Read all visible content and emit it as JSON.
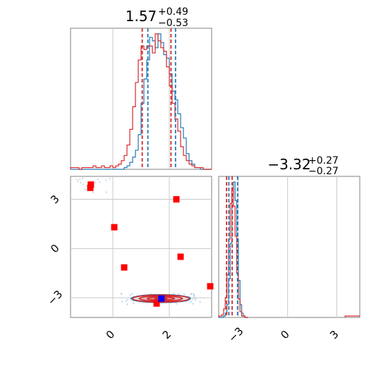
{
  "chart_data": [
    {
      "panel": "marginal-param-1",
      "type": "histogram",
      "title": {
        "value": "1.57",
        "plus": "+0.49",
        "minus": "−0.53"
      },
      "xlim": [
        -1.5,
        3.5
      ],
      "grid": true,
      "series": [
        {
          "name": "",
          "color": "#1f77b4",
          "x": [
            -1.5,
            -1.4,
            -1.3,
            -1.2,
            -1.1,
            -1.0,
            -0.9,
            -0.8,
            -0.7,
            -0.6,
            -0.5,
            -0.4,
            -0.3,
            -0.2,
            -0.1,
            0.0,
            0.1,
            0.2,
            0.3,
            0.4,
            0.5,
            0.6,
            0.7,
            0.8,
            0.9,
            1.0,
            1.1,
            1.2,
            1.3,
            1.4,
            1.5,
            1.6,
            1.7,
            1.8,
            1.9,
            2.0,
            2.1,
            2.2,
            2.3,
            2.4,
            2.5,
            2.6,
            2.7,
            2.8,
            2.9,
            3.0,
            3.1,
            3.2,
            3.3,
            3.4,
            3.5
          ],
          "counts": [
            0,
            0,
            0,
            0,
            0,
            0,
            0,
            0,
            0,
            0,
            0,
            0,
            0,
            0,
            0,
            0,
            0,
            0,
            0,
            1,
            2,
            4,
            7,
            11,
            20,
            38,
            52,
            63,
            76,
            74,
            70,
            78,
            73,
            66,
            64,
            55,
            45,
            40,
            32,
            24,
            18,
            9,
            5,
            3,
            1,
            1,
            0,
            0,
            0,
            0
          ]
        },
        {
          "name": "",
          "color": "#d62728",
          "x": [
            -1.5,
            -1.4,
            -1.3,
            -1.2,
            -1.1,
            -1.0,
            -0.9,
            -0.8,
            -0.7,
            -0.6,
            -0.5,
            -0.4,
            -0.3,
            -0.2,
            -0.1,
            0.0,
            0.1,
            0.2,
            0.3,
            0.4,
            0.5,
            0.6,
            0.7,
            0.8,
            0.9,
            1.0,
            1.1,
            1.2,
            1.3,
            1.4,
            1.5,
            1.6,
            1.7,
            1.8,
            1.9,
            2.0,
            2.1,
            2.2,
            2.3,
            2.4,
            2.5,
            2.6,
            2.7,
            2.8,
            2.9,
            3.0,
            3.1,
            3.2,
            3.3,
            3.4,
            3.5
          ],
          "counts": [
            1,
            1,
            1,
            0,
            1,
            1,
            1,
            1,
            2,
            1,
            1,
            2,
            1,
            1,
            2,
            1,
            2,
            3,
            5,
            8,
            14,
            23,
            36,
            50,
            63,
            71,
            69,
            71,
            71,
            67,
            78,
            74,
            70,
            68,
            59,
            48,
            38,
            29,
            22,
            13,
            8,
            5,
            3,
            2,
            1,
            1,
            1,
            0,
            0,
            0
          ]
        }
      ],
      "quantile_lines": [
        {
          "color": "#d62728",
          "x": [
            1.04,
            2.06
          ]
        },
        {
          "color": "#1f77b4",
          "x": [
            1.24,
            2.22
          ]
        }
      ]
    },
    {
      "panel": "marginal-param-2",
      "type": "histogram",
      "title": {
        "value": "−3.32",
        "plus": "+0.27",
        "minus": "−0.27"
      },
      "xlim": [
        -4.2,
        4.4
      ],
      "grid": true,
      "series": [
        {
          "name": "",
          "color": "#1f77b4",
          "x": [
            -4.2,
            -4.1,
            -4.0,
            -3.9,
            -3.8,
            -3.7,
            -3.6,
            -3.5,
            -3.4,
            -3.3,
            -3.2,
            -3.1,
            -3.0,
            -2.9,
            -2.8,
            -2.7,
            -2.6,
            -2.5,
            -2.4
          ],
          "counts": [
            0,
            0,
            0,
            1,
            3,
            9,
            27,
            52,
            86,
            95,
            82,
            55,
            26,
            9,
            3,
            1,
            0,
            0
          ]
        },
        {
          "name": "",
          "color": "#d62728",
          "x": [
            -4.2,
            -4.1,
            -4.0,
            -3.9,
            -3.8,
            -3.7,
            -3.6,
            -3.5,
            -3.4,
            -3.3,
            -3.2,
            -3.1,
            -3.0,
            -2.9,
            -2.8,
            -2.7,
            -2.6,
            -2.5,
            -2.4
          ],
          "counts": [
            1,
            1,
            2,
            6,
            14,
            30,
            55,
            80,
            91,
            78,
            57,
            31,
            13,
            4,
            1,
            1,
            0,
            0
          ]
        }
      ],
      "tail_counts": {
        "color": "#d62728",
        "x_range": [
          3.5,
          4.4
        ],
        "count": 1
      },
      "quantile_lines": [
        {
          "color": "#d62728",
          "x": [
            -3.72,
            -3.38
          ]
        },
        {
          "color": "#1f77b4",
          "x": [
            -3.58,
            -3.05
          ]
        }
      ]
    },
    {
      "panel": "joint-param-1-param-2",
      "type": "scatter",
      "xlim": [
        -1.5,
        3.5
      ],
      "ylim": [
        -4.2,
        4.4
      ],
      "grid": true,
      "x_ticks": [
        "0",
        "2"
      ],
      "y_ticks": [
        "−3",
        "0",
        "3"
      ],
      "contours": [
        {
          "color": "#1f77b4",
          "center": [
            1.7,
            -3.05
          ],
          "levels": [
            [
              1.05,
              0.24
            ],
            [
              0.78,
              0.17
            ],
            [
              0.5,
              0.11
            ],
            [
              0.25,
              0.06
            ]
          ]
        },
        {
          "color": "#d62728",
          "center": [
            1.7,
            -3.05
          ],
          "levels": [
            [
              1.0,
              0.22
            ],
            [
              0.75,
              0.16
            ],
            [
              0.48,
              0.1
            ],
            [
              0.22,
              0.05
            ]
          ]
        }
      ],
      "markers": [
        {
          "color": "#ff0000",
          "shape": "square",
          "points": [
            [
              -0.8,
              3.7
            ],
            [
              -0.78,
              3.9
            ],
            [
              0.05,
              1.3
            ],
            [
              2.25,
              3.0
            ],
            [
              0.4,
              -1.15
            ],
            [
              2.4,
              -0.5
            ],
            [
              3.45,
              -2.3
            ],
            [
              1.55,
              -3.35
            ]
          ]
        },
        {
          "color": "#0000ff",
          "shape": "square",
          "points": [
            [
              1.72,
              -3.05
            ]
          ]
        }
      ],
      "noise_points": {
        "color": "#a9c4d9",
        "count": 60
      }
    },
    {
      "panel": "tick-axes",
      "param2_x_ticks": [
        "−3",
        "0",
        "3"
      ]
    }
  ]
}
